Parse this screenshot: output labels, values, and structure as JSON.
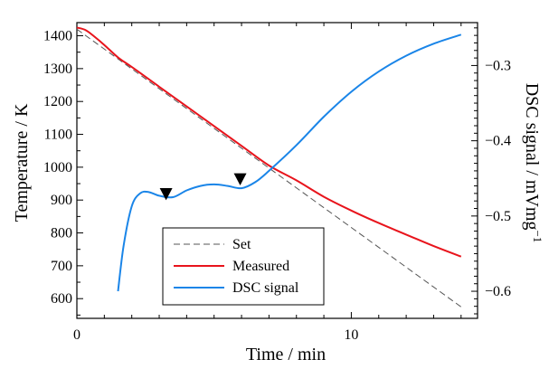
{
  "chart_data": {
    "type": "line",
    "xlabel": "Time / min",
    "ylabel_left": "Temperature / K",
    "ylabel_right": "DSC signal  / mVmg",
    "ylabel_right_exponent": "−1",
    "xlim": [
      0,
      14.6
    ],
    "ylim_left": [
      540,
      1440
    ],
    "ylim_right": [
      -0.636,
      -0.243
    ],
    "x_ticks": [
      0,
      10
    ],
    "x_tick_labels": [
      "0",
      "10"
    ],
    "y_left_ticks": [
      600,
      700,
      800,
      900,
      1000,
      1100,
      1200,
      1300,
      1400
    ],
    "y_left_tick_labels": [
      "600",
      "700",
      "800",
      "900",
      "1000",
      "1100",
      "1200",
      "1300",
      "1400"
    ],
    "y_right_ticks": [
      -0.6,
      -0.5,
      -0.4,
      -0.3
    ],
    "y_right_tick_labels": [
      "−0.6",
      "−0.5",
      "−0.4",
      "−0.3"
    ],
    "grid": false,
    "legend_position": "bottom-left",
    "series": [
      {
        "name": "Set",
        "axis": "left",
        "color": "#555555",
        "style": "dashed",
        "x": [
          0,
          14
        ],
        "y": [
          1420,
          575
        ]
      },
      {
        "name": "Measured",
        "axis": "left",
        "color": "#e8141c",
        "style": "solid",
        "x": [
          0,
          0.3,
          0.6,
          1.0,
          1.5,
          2.0,
          3.0,
          4.0,
          5.0,
          6.0,
          7.0,
          8.0,
          9.0,
          10.0,
          11.0,
          12.0,
          13.0,
          14.0
        ],
        "y": [
          1425,
          1418,
          1400,
          1372,
          1334,
          1305,
          1245,
          1185,
          1125,
          1065,
          1005,
          960,
          910,
          868,
          830,
          795,
          760,
          728
        ]
      },
      {
        "name": "DSC signal",
        "axis": "right",
        "color": "#1a85e8",
        "style": "solid",
        "x": [
          1.5,
          1.7,
          2.0,
          2.3,
          2.6,
          3.0,
          3.5,
          4.0,
          4.5,
          5.0,
          5.5,
          6.0,
          6.5,
          7.0,
          8.0,
          9.0,
          10.0,
          11.0,
          12.0,
          13.0,
          14.0
        ],
        "y": [
          -0.6,
          -0.54,
          -0.487,
          -0.47,
          -0.468,
          -0.473,
          -0.475,
          -0.466,
          -0.46,
          -0.458,
          -0.46,
          -0.463,
          -0.455,
          -0.44,
          -0.406,
          -0.368,
          -0.335,
          -0.308,
          -0.287,
          -0.271,
          -0.259
        ]
      }
    ],
    "annotations": [
      {
        "type": "marker",
        "symbol": "down-triangle",
        "x": 3.25,
        "y": 917,
        "axis": "left"
      },
      {
        "type": "marker",
        "symbol": "down-triangle",
        "x": 5.95,
        "y": 962,
        "axis": "left"
      }
    ]
  }
}
